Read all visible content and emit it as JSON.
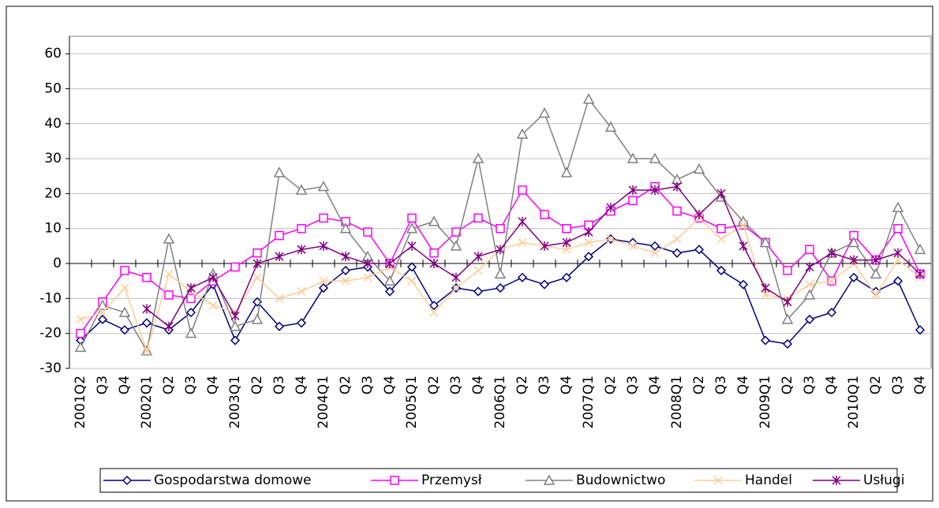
{
  "chart_data": {
    "type": "line",
    "categories": [
      "2001Q2",
      "Q3",
      "Q4",
      "2002Q1",
      "Q2",
      "Q3",
      "Q4",
      "2003Q1",
      "Q2",
      "Q3",
      "Q4",
      "2004Q1",
      "Q2",
      "Q3",
      "Q4",
      "2005Q1",
      "Q2",
      "Q3",
      "Q4",
      "2006Q1",
      "Q2",
      "Q3",
      "Q4",
      "2007Q1",
      "Q2",
      "Q3",
      "Q4",
      "2008Q1",
      "Q2",
      "Q3",
      "Q4",
      "2009Q1",
      "Q2",
      "Q3",
      "Q4",
      "2010Q1",
      "Q2",
      "Q3",
      "Q4"
    ],
    "series": [
      {
        "name": "Gospodarstwa domowe",
        "color": "#000080",
        "marker": "diamond",
        "values": [
          -22,
          -16,
          -19,
          -17,
          -19,
          -14,
          -6,
          -22,
          -11,
          -18,
          -17,
          -7,
          -2,
          -1,
          -8,
          -1,
          -12,
          -7,
          -8,
          -7,
          -4,
          -6,
          -4,
          2,
          7,
          6,
          5,
          3,
          4,
          -2,
          -6,
          -22,
          -23,
          -16,
          -14,
          -4,
          -8,
          -5,
          -19
        ]
      },
      {
        "name": "Przemysł",
        "color": "#ff00ff",
        "marker": "square",
        "values": [
          -20,
          -11,
          -2,
          -4,
          -9,
          -10,
          -5,
          -1,
          3,
          8,
          10,
          13,
          12,
          9,
          0,
          13,
          3,
          9,
          13,
          10,
          21,
          14,
          10,
          11,
          15,
          18,
          22,
          15,
          13,
          10,
          11,
          6,
          -2,
          4,
          -5,
          8,
          1,
          10,
          -3
        ]
      },
      {
        "name": "Budownictwo",
        "color": "#808080",
        "marker": "triangle",
        "values": [
          -24,
          -12,
          -14,
          -25,
          7,
          -20,
          -3,
          -18,
          -16,
          26,
          21,
          22,
          10,
          2,
          -5,
          10,
          12,
          5,
          30,
          -3,
          37,
          43,
          26,
          47,
          39,
          30,
          30,
          24,
          27,
          19,
          12,
          6,
          -16,
          -9,
          3,
          6,
          -3,
          16,
          4
        ]
      },
      {
        "name": "Handel",
        "color": "#ffcc99",
        "marker": "x",
        "values": [
          -16,
          -14,
          -7,
          -25,
          -3,
          -8,
          -12,
          -14,
          -4,
          -10,
          -8,
          -5,
          -5,
          -4,
          -1,
          -5,
          -14,
          -7,
          -2,
          4,
          6,
          5,
          4,
          6,
          7,
          5,
          3,
          7,
          13,
          7,
          11,
          -9,
          -10,
          -6,
          -5,
          0,
          -9,
          1,
          -4
        ]
      },
      {
        "name": "Usługi",
        "color": "#800080",
        "marker": "star",
        "values": [
          null,
          null,
          null,
          -13,
          -18,
          -7,
          -4,
          -15,
          0,
          2,
          4,
          5,
          2,
          0,
          0,
          5,
          0,
          -4,
          2,
          4,
          12,
          5,
          6,
          9,
          16,
          21,
          21,
          22,
          14,
          20,
          5,
          -7,
          -11,
          -1,
          3,
          1,
          1,
          3,
          -3
        ]
      }
    ],
    "ylim": [
      -30,
      65
    ],
    "yticks": [
      -30,
      -20,
      -10,
      0,
      10,
      20,
      30,
      40,
      50,
      60
    ],
    "grid": true,
    "legend": "bottom"
  }
}
